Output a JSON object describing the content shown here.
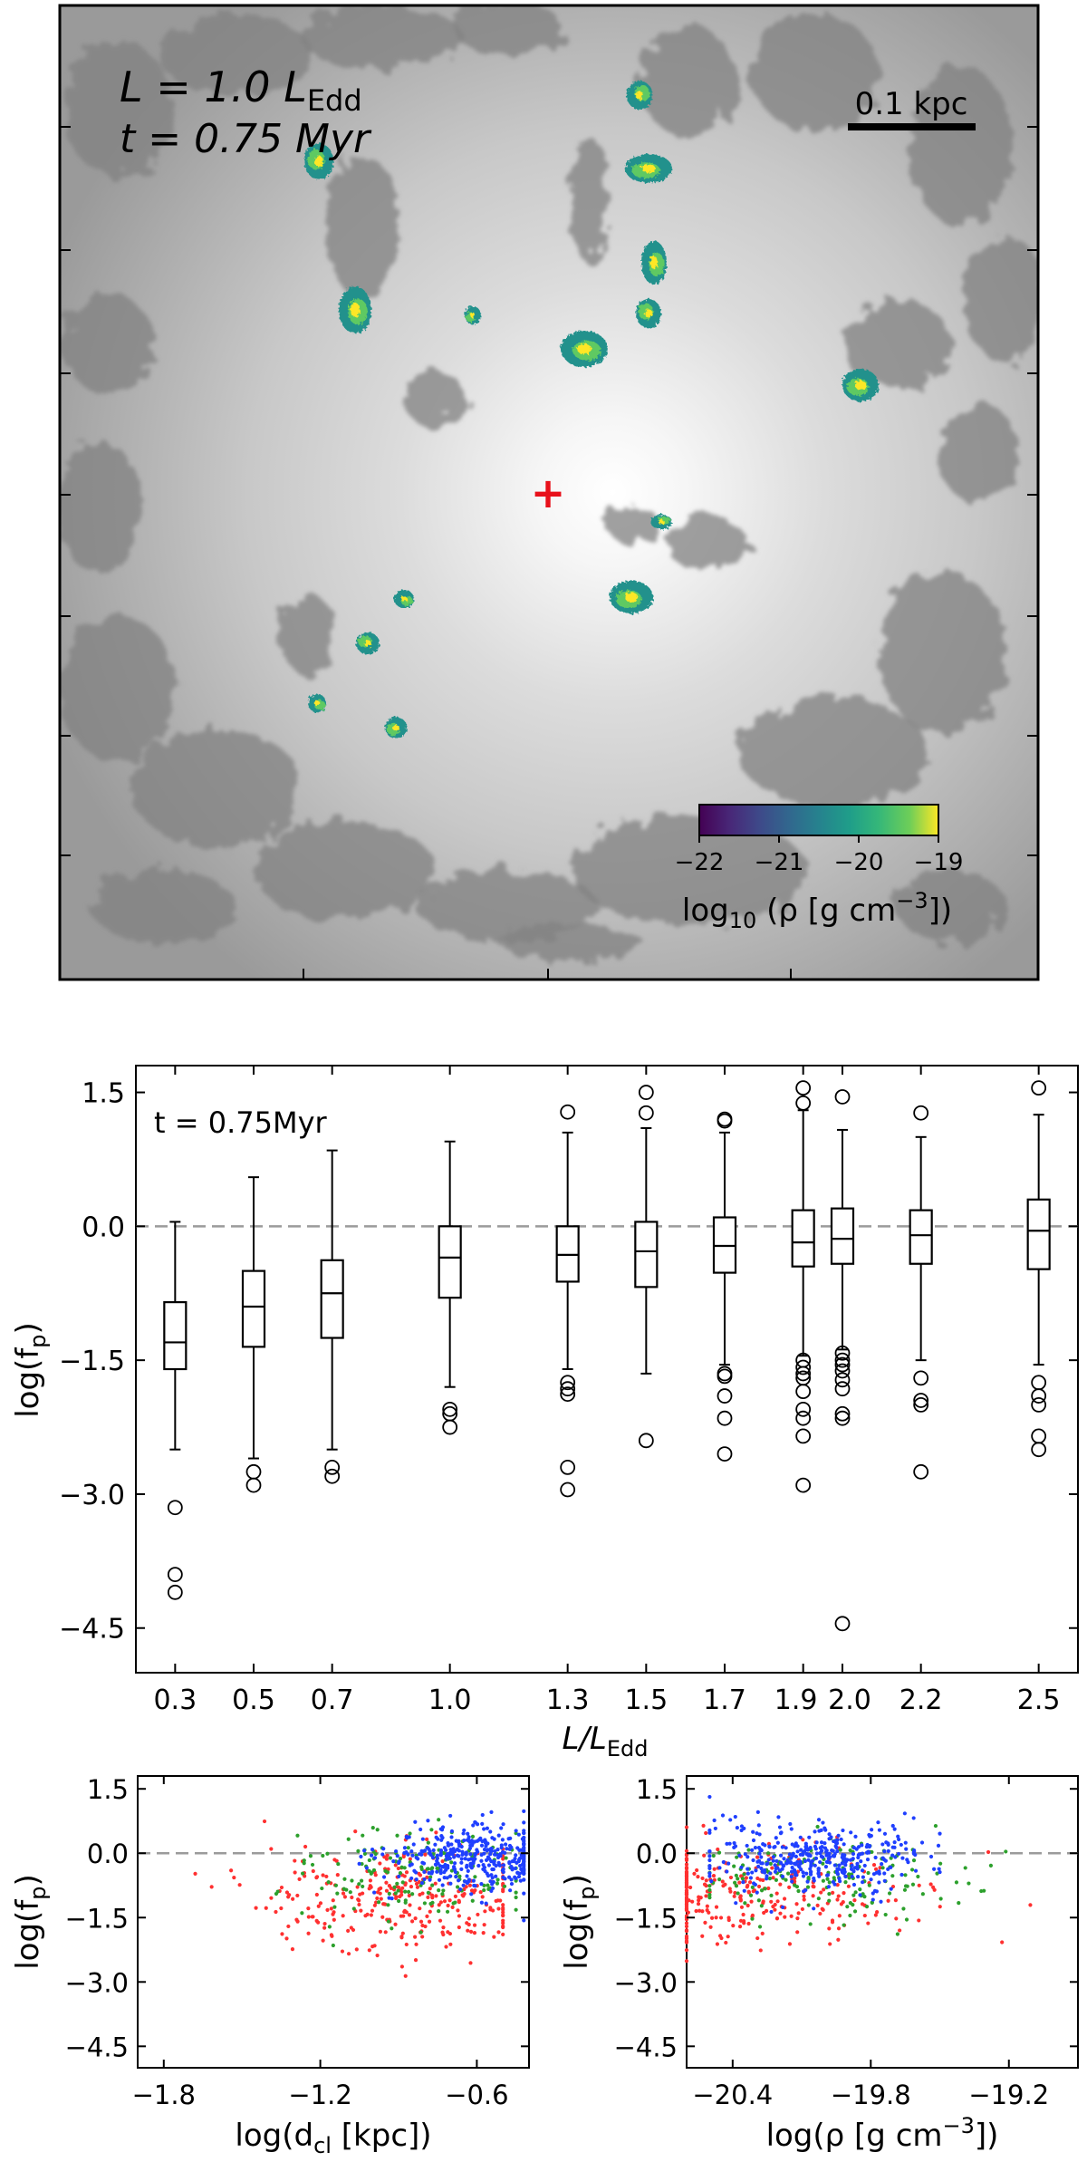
{
  "panel_a": {
    "luminosity_label": "L = 1.0 L_Edd",
    "luminosity_text": {
      "prefix": "L = 1.0 L",
      "sub": "Edd"
    },
    "time_label": "t = 0.75 Myr",
    "scale_bar_label": "0.1 kpc",
    "center_marker": "+",
    "center_marker_color": "#e8101a",
    "colorbar": {
      "colormap": "viridis",
      "ticks": [
        "−22",
        "−21",
        "−20",
        "−19"
      ],
      "range": [
        -22,
        -19
      ],
      "label": {
        "pre": "log",
        "sub": "10",
        "post": " (ρ [g cm",
        "sup": "−3",
        "end": "])"
      }
    },
    "clump_colors": [
      "#3b528b",
      "#21918c",
      "#27ad81",
      "#5ec962",
      "#aadc32",
      "#fde725"
    ]
  },
  "chart_data": [
    {
      "type": "box",
      "annotation": "t = 0.75Myr",
      "xlabel": {
        "pre": "L/L",
        "sub": "Edd"
      },
      "ylabel": {
        "pre": "log(f",
        "sub": "p",
        "post": ")"
      },
      "ylim": [
        -5.0,
        1.8
      ],
      "yticks": [
        1.5,
        0.0,
        -1.5,
        -3.0,
        -4.5
      ],
      "ytick_labels": [
        "1.5",
        "0.0",
        "−1.5",
        "−3.0",
        "−4.5"
      ],
      "xlim": [
        0.2,
        2.6
      ],
      "xticks": [
        0.3,
        0.5,
        0.7,
        1.0,
        1.3,
        1.5,
        1.7,
        1.9,
        2.0,
        2.2,
        2.5
      ],
      "xtick_labels": [
        "0.3",
        "0.5",
        "0.7",
        "1.0",
        "1.3",
        "1.5",
        "1.7",
        "1.9",
        "2.0",
        "2.2",
        "2.5"
      ],
      "reference_line_y": 0.0,
      "boxes": [
        {
          "x": 0.3,
          "q1": -1.6,
          "median": -1.3,
          "q3": -0.85,
          "whisker_low": -2.5,
          "whisker_high": 0.05,
          "outliers": [
            -3.15,
            -3.9,
            -4.1
          ]
        },
        {
          "x": 0.5,
          "q1": -1.35,
          "median": -0.9,
          "q3": -0.5,
          "whisker_low": -2.6,
          "whisker_high": 0.55,
          "outliers": [
            -2.75,
            -2.9
          ]
        },
        {
          "x": 0.7,
          "q1": -1.25,
          "median": -0.75,
          "q3": -0.38,
          "whisker_low": -2.5,
          "whisker_high": 0.85,
          "outliers": [
            -2.7,
            -2.8
          ]
        },
        {
          "x": 1.0,
          "q1": -0.8,
          "median": -0.35,
          "q3": 0.0,
          "whisker_low": -1.8,
          "whisker_high": 0.95,
          "outliers": [
            -2.05,
            -2.1,
            -2.25
          ]
        },
        {
          "x": 1.3,
          "q1": -0.62,
          "median": -0.32,
          "q3": 0.0,
          "whisker_low": -1.6,
          "whisker_high": 1.05,
          "outliers": [
            1.28,
            -1.75,
            -1.82,
            -1.88,
            -2.7,
            -2.95
          ]
        },
        {
          "x": 1.5,
          "q1": -0.68,
          "median": -0.28,
          "q3": 0.05,
          "whisker_low": -1.65,
          "whisker_high": 1.1,
          "outliers": [
            1.5,
            1.27,
            -2.4
          ]
        },
        {
          "x": 1.7,
          "q1": -0.52,
          "median": -0.22,
          "q3": 0.1,
          "whisker_low": -1.55,
          "whisker_high": 1.05,
          "outliers": [
            1.2,
            1.18,
            -1.65,
            -1.68,
            -1.9,
            -2.15,
            -2.55
          ]
        },
        {
          "x": 1.9,
          "q1": -0.45,
          "median": -0.18,
          "q3": 0.18,
          "whisker_low": -1.45,
          "whisker_high": 1.3,
          "outliers": [
            1.55,
            1.38,
            -1.5,
            -1.58,
            -1.65,
            -1.7,
            -1.85,
            -2.05,
            -2.15,
            -2.35,
            -2.9
          ]
        },
        {
          "x": 2.0,
          "q1": -0.42,
          "median": -0.14,
          "q3": 0.2,
          "whisker_low": -1.38,
          "whisker_high": 1.08,
          "outliers": [
            1.45,
            -1.42,
            -1.5,
            -1.55,
            -1.62,
            -1.72,
            -1.82,
            -2.1,
            -2.15,
            -4.45
          ]
        },
        {
          "x": 2.2,
          "q1": -0.42,
          "median": -0.1,
          "q3": 0.18,
          "whisker_low": -1.5,
          "whisker_high": 1.0,
          "outliers": [
            1.27,
            -1.7,
            -1.95,
            -2.0,
            -2.75
          ]
        },
        {
          "x": 2.5,
          "q1": -0.48,
          "median": -0.05,
          "q3": 0.3,
          "whisker_low": -1.55,
          "whisker_high": 1.25,
          "outliers": [
            1.55,
            -1.75,
            -1.9,
            -2.0,
            -2.35,
            -2.5
          ]
        }
      ]
    },
    {
      "type": "scatter",
      "xlabel": {
        "pre": "log(d",
        "sub": "cl",
        "post": " [kpc])"
      },
      "ylabel": {
        "pre": "log(f",
        "sub": "p",
        "post": ")"
      },
      "xlim": [
        -1.9,
        -0.4
      ],
      "ylim": [
        -5.0,
        1.8
      ],
      "xticks": [
        -1.8,
        -1.2,
        -0.6
      ],
      "xtick_labels": [
        "−1.8",
        "−1.2",
        "−0.6"
      ],
      "yticks": [
        1.5,
        0.0,
        -1.5,
        -3.0,
        -4.5
      ],
      "ytick_labels": [
        "1.5",
        "0.0",
        "−1.5",
        "−3.0",
        "−4.5"
      ],
      "reference_line_y": 0.0,
      "colors": [
        "#ff3030",
        "#2ca02c",
        "#1f3fff"
      ],
      "series": [
        {
          "color": "#ff3030",
          "approx_count": 300,
          "x_range": [
            -1.8,
            -0.5
          ],
          "x_center": -0.9,
          "y_center": -1.1,
          "y_spread": 0.6
        },
        {
          "color": "#2ca02c",
          "approx_count": 160,
          "x_range": [
            -1.5,
            -0.45
          ],
          "x_center": -0.8,
          "y_center": -0.5,
          "y_spread": 0.5
        },
        {
          "color": "#1f3fff",
          "approx_count": 380,
          "x_range": [
            -1.2,
            -0.42
          ],
          "x_center": -0.6,
          "y_center": -0.1,
          "y_spread": 0.4
        }
      ]
    },
    {
      "type": "scatter",
      "xlabel": {
        "pre": "log(ρ [g cm",
        "sup": "−3",
        "post": "])"
      },
      "ylabel": {
        "pre": "log(f",
        "sub": "p",
        "post": ")"
      },
      "xlim": [
        -20.6,
        -18.9
      ],
      "ylim": [
        -5.0,
        1.8
      ],
      "xticks": [
        -20.4,
        -19.8,
        -19.2
      ],
      "xtick_labels": [
        "−20.4",
        "−19.8",
        "−19.2"
      ],
      "yticks": [
        1.5,
        0.0,
        -1.5,
        -3.0,
        -4.5
      ],
      "ytick_labels": [
        "1.5",
        "0.0",
        "−1.5",
        "−3.0",
        "−4.5"
      ],
      "reference_line_y": 0.0,
      "colors": [
        "#ff3030",
        "#2ca02c",
        "#1f3fff"
      ],
      "series": [
        {
          "color": "#ff3030",
          "approx_count": 300,
          "x_range": [
            -20.6,
            -19.0
          ],
          "x_center": -20.35,
          "y_center": -1.0,
          "y_spread": 0.55
        },
        {
          "color": "#2ca02c",
          "approx_count": 160,
          "x_range": [
            -20.5,
            -19.1
          ],
          "x_center": -20.0,
          "y_center": -0.5,
          "y_spread": 0.5
        },
        {
          "color": "#1f3fff",
          "approx_count": 380,
          "x_range": [
            -20.5,
            -19.5
          ],
          "x_center": -20.05,
          "y_center": -0.1,
          "y_spread": 0.4
        }
      ]
    }
  ]
}
